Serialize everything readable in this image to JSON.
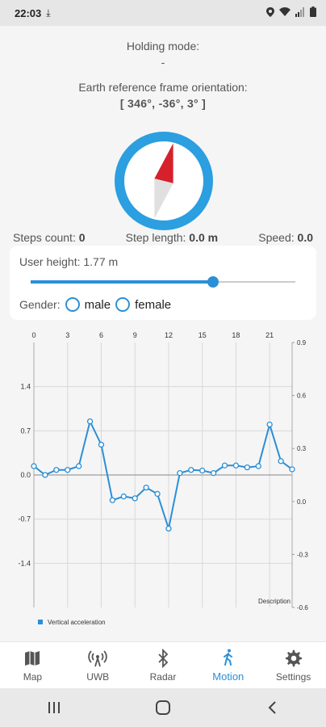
{
  "status": {
    "time": "22:03"
  },
  "holding": {
    "label": "Holding mode:",
    "value": "-"
  },
  "orientation": {
    "label": "Earth reference frame orientation:",
    "value": "[ 346°, -36°, 3° ]"
  },
  "stats": {
    "steps_label": "Steps count:",
    "steps_value": "0",
    "step_length_label": "Step length:",
    "step_length_value": "0.0 m",
    "speed_label": "Speed:",
    "speed_value": "0.0"
  },
  "user": {
    "height_label": "User height: 1.77 m",
    "height_slider_fraction": 0.69,
    "gender_label": "Gender:",
    "gender_options": [
      "male",
      "female"
    ]
  },
  "chart_data": {
    "type": "line",
    "x_ticks": [
      "0",
      "3",
      "6",
      "9",
      "12",
      "15",
      "18",
      "21"
    ],
    "left_ticks": [
      "1.4",
      "0.7",
      "0.0",
      "-0.7",
      "-1.4"
    ],
    "right_ticks": [
      "0.9",
      "0.6",
      "0.3",
      "0.0",
      "-0.3",
      "-0.6"
    ],
    "xlim": [
      0,
      23
    ],
    "ylim": [
      -2.1,
      2.1
    ],
    "description": "Description",
    "series": [
      {
        "name": "Vertical acceleration",
        "x": [
          0,
          1,
          2,
          3,
          4,
          5,
          6,
          7,
          8,
          9,
          10,
          11,
          12,
          13,
          14,
          15,
          16,
          17,
          18,
          19,
          20,
          21,
          22,
          23
        ],
        "values": [
          0.14,
          0.0,
          0.08,
          0.08,
          0.14,
          0.85,
          0.48,
          -0.4,
          -0.34,
          -0.37,
          -0.2,
          -0.3,
          -0.85,
          0.03,
          0.08,
          0.07,
          0.03,
          0.15,
          0.15,
          0.12,
          0.14,
          0.8,
          0.22,
          0.09
        ]
      }
    ],
    "colors": {
      "line": "#2b8fd6",
      "grid": "#d8d8d8",
      "zero": "#888888"
    }
  },
  "nav": {
    "items": [
      {
        "label": "Map",
        "icon": "map-icon"
      },
      {
        "label": "UWB",
        "icon": "uwb-icon"
      },
      {
        "label": "Radar",
        "icon": "radar-icon"
      },
      {
        "label": "Motion",
        "icon": "walk-icon"
      },
      {
        "label": "Settings",
        "icon": "gear-icon"
      }
    ],
    "active": "Motion"
  },
  "colors": {
    "accent": "#2b8fd6",
    "needle": "#d6202b"
  }
}
